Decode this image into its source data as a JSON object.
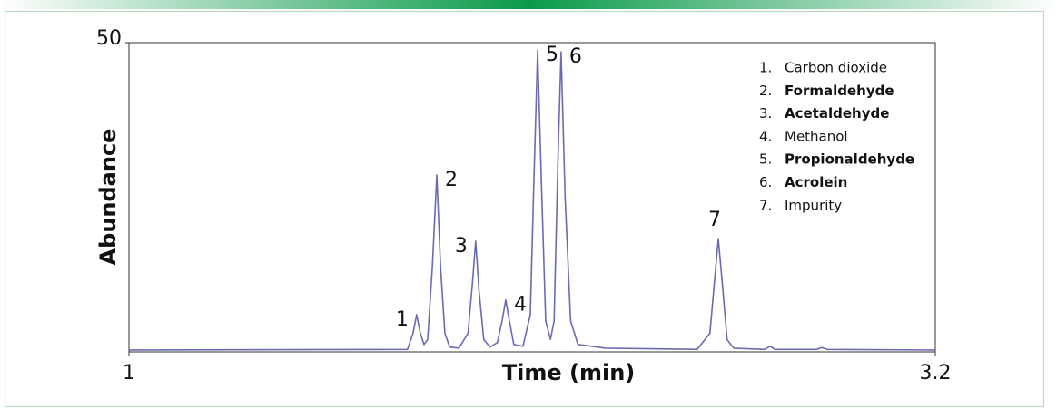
{
  "chart_data": {
    "type": "line",
    "x_label": "Time (min)",
    "y_label": "Abundance",
    "xlim": [
      1,
      3.2
    ],
    "ylim": [
      0,
      50
    ],
    "xticks": [
      1,
      3.2
    ],
    "yticks": [
      50
    ],
    "grid": false,
    "color": "#6b6bb0",
    "x": [
      1.0,
      1.76,
      1.775,
      1.785,
      1.795,
      1.805,
      1.815,
      1.828,
      1.84,
      1.85,
      1.862,
      1.875,
      1.9,
      1.925,
      1.937,
      1.946,
      1.955,
      1.968,
      1.985,
      2.005,
      2.018,
      2.028,
      2.038,
      2.05,
      2.075,
      2.095,
      2.105,
      2.115,
      2.125,
      2.137,
      2.15,
      2.16,
      2.17,
      2.179,
      2.19,
      2.205,
      2.225,
      2.3,
      2.55,
      2.585,
      2.597,
      2.608,
      2.619,
      2.632,
      2.65,
      2.735,
      2.749,
      2.763,
      2.876,
      2.89,
      2.905,
      3.2
    ],
    "values": [
      0.3,
      0.4,
      3,
      6.0,
      3,
      1.2,
      2,
      14,
      28.6,
      14,
      3,
      0.8,
      0.6,
      3,
      11,
      17.9,
      10,
      2,
      0.8,
      1.5,
      5,
      8.4,
      5,
      1.2,
      0.9,
      6,
      28,
      48.8,
      28,
      5,
      2,
      5,
      30,
      48.5,
      25,
      5,
      1.2,
      0.6,
      0.4,
      3,
      11,
      18.3,
      11,
      2,
      0.6,
      0.4,
      0.9,
      0.4,
      0.4,
      0.7,
      0.4,
      0.3
    ],
    "peak_labels": [
      "1",
      "2",
      "3",
      "4",
      "5",
      "6",
      "7"
    ],
    "legend": [
      {
        "number": "1.",
        "name": "Carbon dioxide",
        "bold": false
      },
      {
        "number": "2.",
        "name": "Formaldehyde",
        "bold": true
      },
      {
        "number": "3.",
        "name": "Acetaldehyde",
        "bold": true
      },
      {
        "number": "4.",
        "name": "Methanol",
        "bold": false
      },
      {
        "number": "5.",
        "name": "Propionaldehyde",
        "bold": true
      },
      {
        "number": "6.",
        "name": "Acrolein",
        "bold": true
      },
      {
        "number": "7.",
        "name": "Impurity",
        "bold": false
      }
    ]
  }
}
